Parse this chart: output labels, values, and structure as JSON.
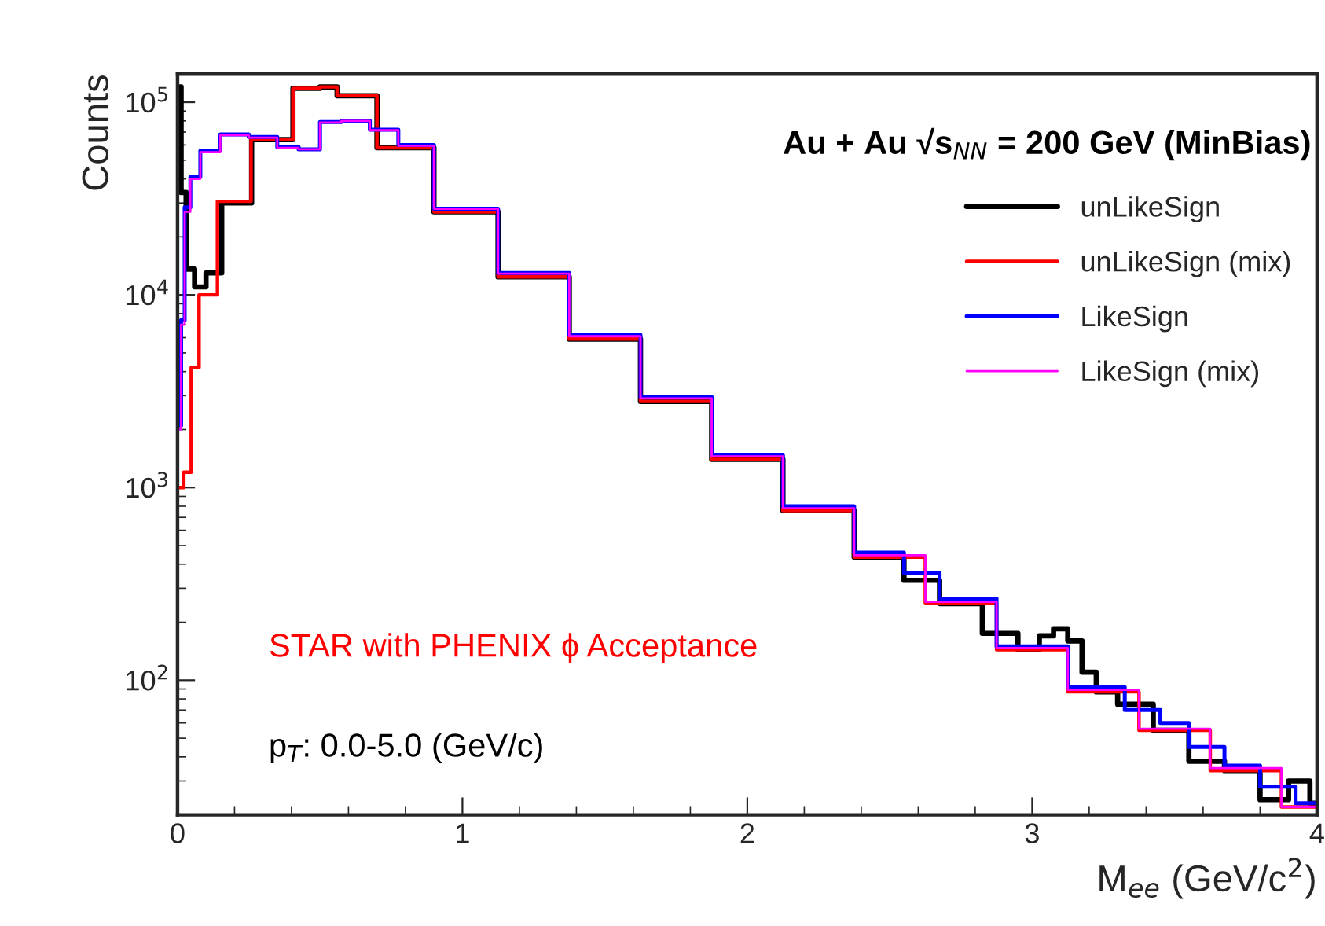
{
  "chart_data": {
    "type": "step",
    "xlabel": "M$_{ee}$ (GeV/c$^{2}$)",
    "ylabel": "Counts",
    "log": "y",
    "grid": false,
    "legend": "top right",
    "xlim": [
      0,
      4
    ],
    "xticks": [
      0,
      1,
      2,
      3,
      4
    ],
    "ylim": [
      20,
      140000
    ],
    "yticks": [
      {
        "value": 100,
        "label": "10$^{2}$"
      },
      {
        "value": 1000,
        "label": "10$^{3}$"
      },
      {
        "value": 10000,
        "label": "10$^{4}$"
      },
      {
        "value": 100000,
        "label": "10$^{5}$"
      }
    ],
    "annotations": [
      "Au + Au √s$_{NN}$ = 200 GeV (MinBias)",
      "STAR with PHENIX ϕ Acceptance",
      "p$_{T}$: 0.0-5.0 (GeV/c)"
    ],
    "series": [
      {
        "name": "unLikeSign",
        "color": "#000000",
        "x": [
          0.005,
          0.02,
          0.04,
          0.08,
          0.12,
          0.19,
          0.33,
          0.48,
          0.52,
          0.6,
          0.8,
          1.0,
          1.25,
          1.5,
          1.75,
          2.0,
          2.25,
          2.5,
          2.6,
          2.75,
          2.9,
          3.0,
          3.05,
          3.1,
          3.15,
          3.2,
          3.25,
          3.35,
          3.5,
          3.6,
          3.75,
          3.85,
          3.95,
          4.0
        ],
        "values": [
          120000,
          34000,
          13600,
          11000,
          13000,
          30000,
          64000,
          118000,
          120000,
          108000,
          58000,
          27000,
          12400,
          5900,
          2800,
          1400,
          760,
          435,
          330,
          250,
          175,
          144,
          170,
          185,
          160,
          110,
          87,
          75,
          55,
          38,
          34,
          24,
          30,
          23
        ]
      },
      {
        "name": "unLikeSign (mix)",
        "color": "#ff0000",
        "x": [
          0.005,
          0.039,
          0.057,
          0.094,
          0.186,
          0.33,
          0.48,
          0.52,
          0.6,
          0.8,
          1.0,
          1.25,
          1.5,
          1.75,
          2.0,
          2.25,
          2.5,
          2.75,
          3.0,
          3.25,
          3.5,
          3.75,
          4.0
        ],
        "values": [
          1000,
          1200,
          4200,
          10000,
          30600,
          64000,
          118000,
          120000,
          108000,
          58000,
          27000,
          12400,
          5900,
          2800,
          1400,
          760,
          435,
          250,
          144,
          87,
          55,
          34,
          22
        ]
      },
      {
        "name": "LikeSign",
        "color": "#0000ff",
        "x": [
          0.005,
          0.02,
          0.03,
          0.06,
          0.1,
          0.2,
          0.3,
          0.4,
          0.45,
          0.55,
          0.6,
          0.75,
          0.8,
          1.0,
          1.25,
          1.5,
          1.75,
          2.0,
          2.25,
          2.5,
          2.6,
          2.75,
          3.0,
          3.25,
          3.4,
          3.5,
          3.6,
          3.75,
          3.85,
          4.0
        ],
        "values": [
          2100,
          7400,
          28500,
          41000,
          56000,
          68000,
          66000,
          58500,
          57000,
          79000,
          80000,
          72000,
          60000,
          28000,
          13000,
          6200,
          2950,
          1480,
          800,
          460,
          360,
          265,
          150,
          92,
          70,
          60,
          45,
          36,
          28,
          23
        ]
      },
      {
        "name": "LikeSign (mix)",
        "color": "#ff00ff",
        "x": [
          0.005,
          0.02,
          0.03,
          0.06,
          0.1,
          0.2,
          0.3,
          0.4,
          0.45,
          0.55,
          0.6,
          0.75,
          0.8,
          1.0,
          1.25,
          1.5,
          1.75,
          2.0,
          2.25,
          2.5,
          2.75,
          3.0,
          3.25,
          3.5,
          3.75,
          4.0
        ],
        "values": [
          2000,
          7000,
          27000,
          40000,
          55000,
          67500,
          65500,
          58000,
          57000,
          78500,
          80000,
          71500,
          59500,
          28000,
          12900,
          6100,
          2900,
          1450,
          780,
          445,
          255,
          147,
          89,
          56,
          35,
          22
        ]
      }
    ]
  }
}
